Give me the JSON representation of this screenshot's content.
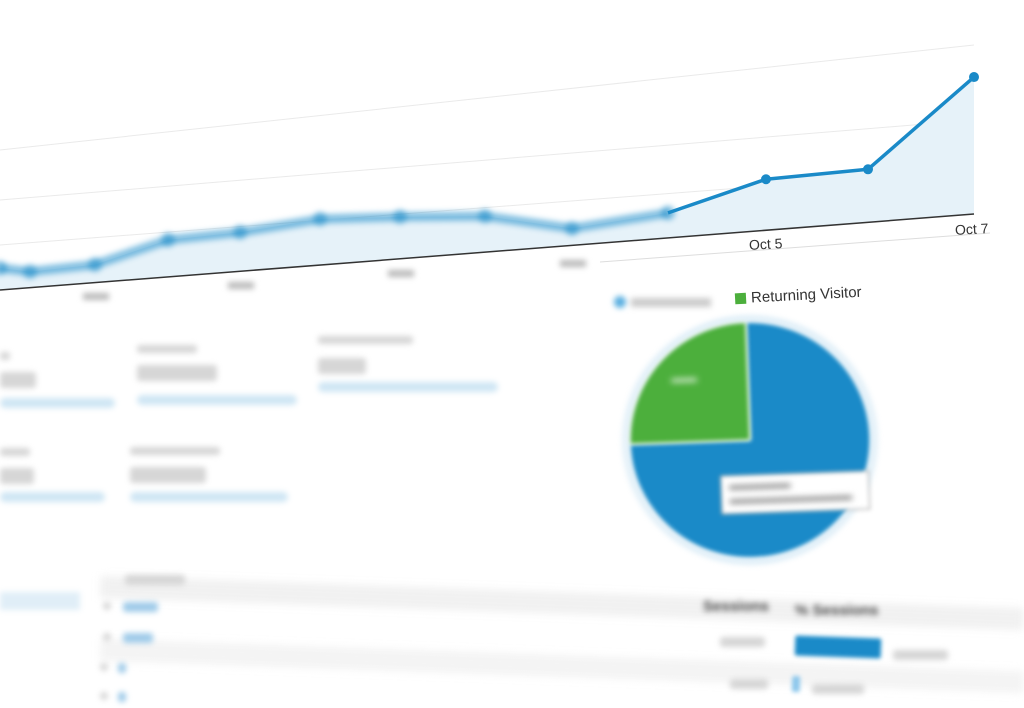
{
  "chart_data": [
    {
      "type": "area",
      "x_tick_labels": [
        "Oct 5",
        "Oct 7"
      ],
      "values": [
        22,
        16,
        18,
        37,
        39,
        46,
        42,
        36,
        17,
        25,
        51,
        53,
        137
      ],
      "grid": true,
      "color": "#1a8ac8",
      "fill": "#e6f2f9"
    },
    {
      "type": "pie",
      "legend": [
        "Returning Visitor"
      ],
      "legend_placement": "top",
      "slices": [
        {
          "label": "",
          "value": 75,
          "color": "#1a8ac8"
        },
        {
          "label": "Returning Visitor",
          "value": 25,
          "color": "#4caf3c"
        }
      ]
    }
  ],
  "table": {
    "headers": [
      "Sessions",
      "% Sessions"
    ],
    "bar_fractions": [
      0.95,
      0.05
    ]
  },
  "colors": {
    "accent": "#1a8ac8",
    "green": "#4caf3c"
  }
}
